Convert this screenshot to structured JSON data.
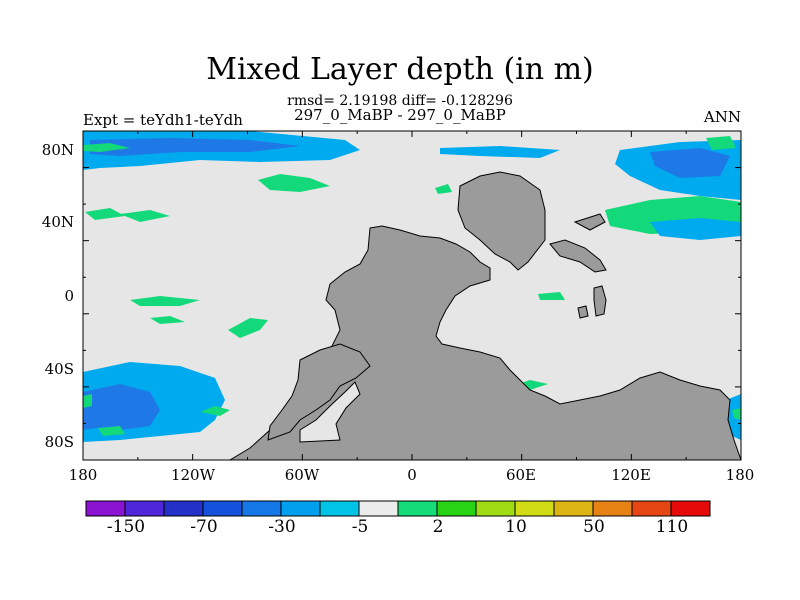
{
  "title": "Mixed Layer depth (in m)",
  "subtitle": "rmsd= 2.19198 diff= -0.128296",
  "left_label": "Expt = teYdh1-teYdh",
  "center_label": "297_0_MaBP - 297_0_MaBP",
  "right_label": "ANN",
  "map": {
    "lat_labels": [
      "80N",
      "40N",
      "0",
      "40S",
      "80S"
    ],
    "lon_labels": [
      "180",
      "120W",
      "60W",
      "0",
      "60E",
      "120E",
      "180"
    ],
    "colors": {
      "background": "#e6e6e6",
      "land": "#9b9b9b",
      "outline": "#000000",
      "shallow_positive": "#14d97a",
      "moderate_negative": "#00aaee",
      "strong_negative": "#1e78e6"
    }
  },
  "colorbar": {
    "colors": [
      "#8a14d2",
      "#4f27d8",
      "#2331c8",
      "#1452dc",
      "#1478e6",
      "#00a0ef",
      "#00c3e6",
      "#ececec",
      "#14dc78",
      "#28d214",
      "#a0dc14",
      "#d2dc14",
      "#dcb414",
      "#e68214",
      "#e64614",
      "#e60a0a"
    ],
    "labels": [
      "-150",
      "-70",
      "-30",
      "-5",
      "2",
      "10",
      "50",
      "110"
    ]
  }
}
